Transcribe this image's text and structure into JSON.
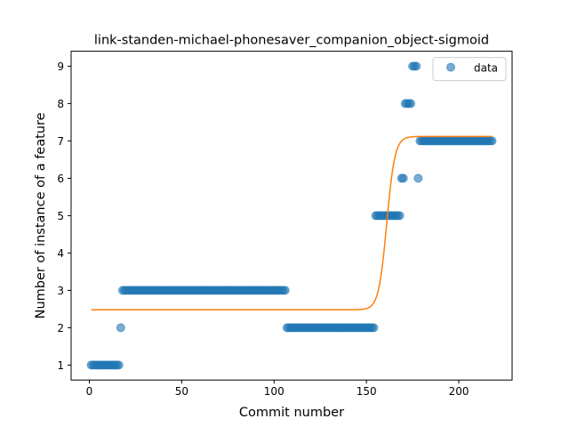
{
  "chart_data": {
    "type": "scatter",
    "title": "link-standen-michael-phonesaver_companion_object-sigmoid",
    "xlabel": "Commit number",
    "ylabel": "Number of instance of a feature",
    "xlim": [
      -9.85,
      228.85
    ],
    "ylim": [
      0.6,
      9.4
    ],
    "xticks": [
      0,
      50,
      100,
      150,
      200
    ],
    "yticks": [
      1,
      2,
      3,
      4,
      5,
      6,
      7,
      8,
      9
    ],
    "legend": {
      "position": "top-right",
      "label": "data"
    },
    "colors": {
      "scatter": "#1f77b4",
      "fit": "#ff7f0e"
    },
    "series": [
      {
        "name": "data",
        "kind": "scatter",
        "segments": [
          {
            "x_from": 1,
            "x_to": 16,
            "y": 1
          },
          {
            "x_from": 17,
            "x_to": 17,
            "y": 2
          },
          {
            "x_from": 18,
            "x_to": 106,
            "y": 3
          },
          {
            "x_from": 107,
            "x_to": 154,
            "y": 2
          },
          {
            "x_from": 155,
            "x_to": 168,
            "y": 5
          },
          {
            "x_from": 169,
            "x_to": 170,
            "y": 6
          },
          {
            "x_from": 171,
            "x_to": 174,
            "y": 8
          },
          {
            "x_from": 175,
            "x_to": 177,
            "y": 9
          },
          {
            "x_from": 178,
            "x_to": 178,
            "y": 6
          },
          {
            "x_from": 179,
            "x_to": 218,
            "y": 7
          }
        ]
      },
      {
        "kind": "line",
        "sigmoid": {
          "low": 2.48,
          "high": 7.12,
          "x0": 161,
          "k": 0.45,
          "x_from": 1,
          "x_to": 218
        }
      }
    ]
  }
}
